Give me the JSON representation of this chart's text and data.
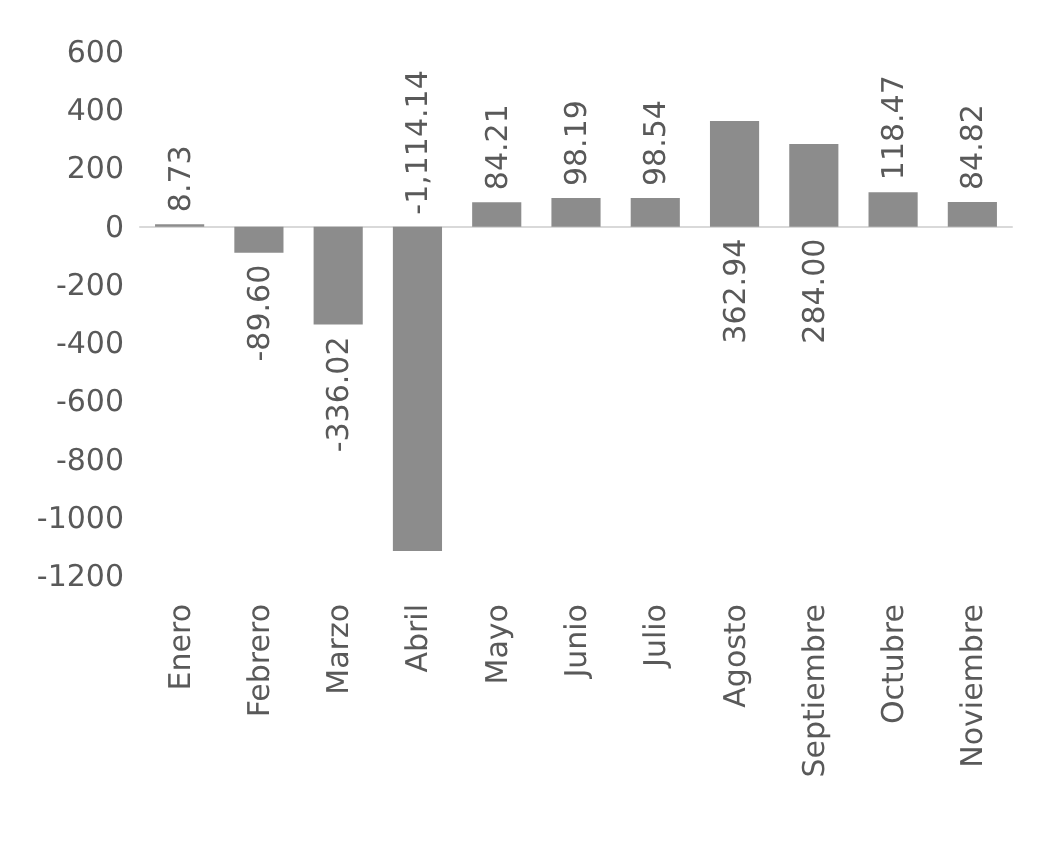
{
  "chart_data": {
    "type": "bar",
    "categories": [
      "Enero",
      "Febrero",
      "Marzo",
      "Abril",
      "Mayo",
      "Junio",
      "Julio",
      "Agosto",
      "Septiembre",
      "Octubre",
      "Noviembre"
    ],
    "values": [
      8.73,
      -89.6,
      -336.02,
      -1114.14,
      84.21,
      98.19,
      98.54,
      362.94,
      284.0,
      118.47,
      84.82
    ],
    "value_labels": [
      "8.73",
      "-89.60",
      "-336.02",
      "-1,114.14",
      "84.21",
      "98.19",
      "98.54",
      "362.94",
      "284.00",
      "118.47",
      "84.82"
    ],
    "color": "#8c8c8c",
    "ylim": [
      -1200,
      600
    ],
    "yticks": [
      -1200,
      -1000,
      -800,
      -600,
      -400,
      -200,
      0,
      200,
      400,
      600
    ]
  }
}
